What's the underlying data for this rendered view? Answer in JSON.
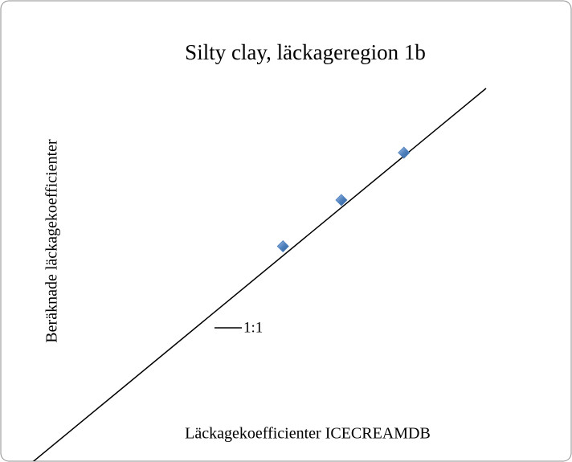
{
  "chart_data": {
    "type": "scatter",
    "title": "Silty clay, läckageregion 1b",
    "x_label": "Läckagekoefficienter ICECREAMDB",
    "y_label": "Beräknade läckagekoefficienter",
    "xlim": [
      0,
      1
    ],
    "ylim": [
      0,
      1
    ],
    "legend": "center-left",
    "series": [
      {
        "type": "scatter",
        "color": "#4f81bd",
        "x": [
          0.555,
          0.683,
          0.82
        ],
        "values": [
          0.58,
          0.703,
          0.829
        ]
      },
      {
        "type": "line",
        "name": "1:1",
        "color": "#000000",
        "x": [
          0,
          1
        ],
        "values": [
          0,
          1
        ]
      }
    ]
  }
}
